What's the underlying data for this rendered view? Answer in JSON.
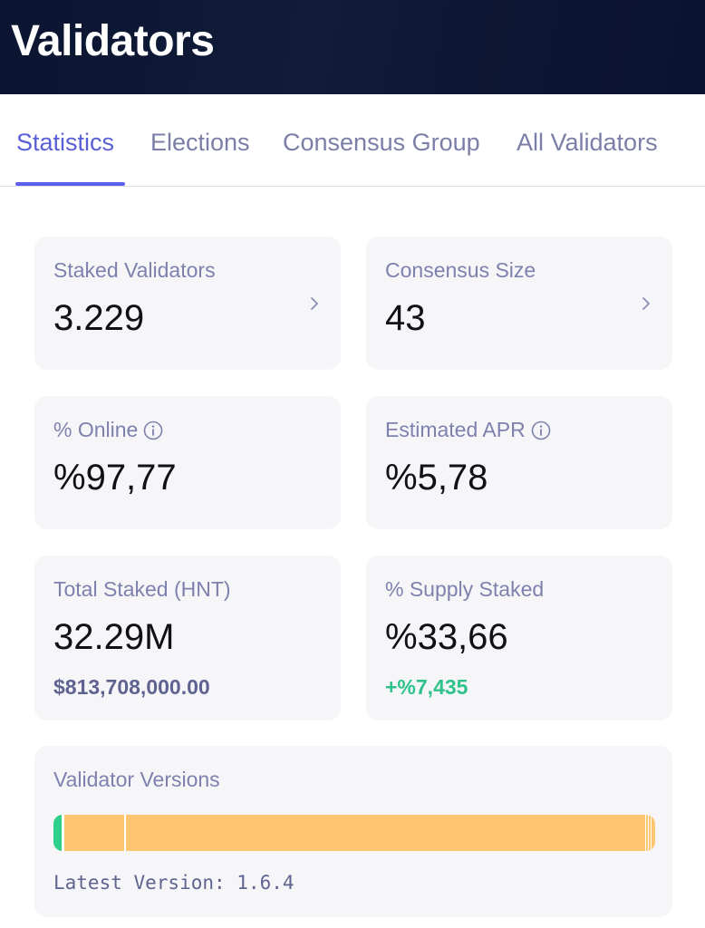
{
  "header": {
    "title": "Validators"
  },
  "tabs": [
    {
      "label": "Statistics",
      "active": true
    },
    {
      "label": "Elections",
      "active": false
    },
    {
      "label": "Consensus Group",
      "active": false
    },
    {
      "label": "All Validators",
      "active": false
    }
  ],
  "stats": {
    "staked_validators": {
      "label": "Staked Validators",
      "value": "3.229"
    },
    "consensus_size": {
      "label": "Consensus Size",
      "value": "43"
    },
    "online": {
      "label": "% Online",
      "value": "%97,77"
    },
    "apr": {
      "label": "Estimated APR",
      "value": "%5,78"
    },
    "total_staked": {
      "label": "Total Staked (HNT)",
      "value": "32.29M",
      "sub": "$813,708,000.00"
    },
    "supply_staked": {
      "label": "% Supply Staked",
      "value": "%33,66",
      "sub": "+%7,435"
    }
  },
  "versions": {
    "label": "Validator Versions",
    "latest": "Latest Version: 1.6.4"
  },
  "colors": {
    "accent": "#5b5ee8",
    "positive": "#2fc28a",
    "bar_main": "#fec66f",
    "bar_green": "#2ecf8c"
  },
  "icons": {
    "chevron": "chevron-right-icon",
    "info": "info-icon"
  }
}
